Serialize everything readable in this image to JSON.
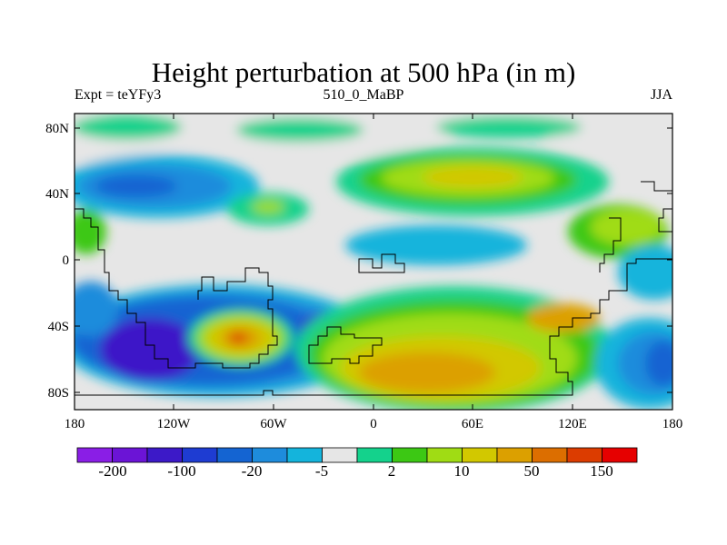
{
  "title": "Height perturbation at 500 hPa (in m)",
  "subtitle_left": "Expt = teYFy3",
  "subtitle_center": "510_0_MaBP",
  "subtitle_right": "JJA",
  "map": {
    "lon_range": [
      -180,
      180
    ],
    "lat_range": [
      -90,
      90
    ],
    "y_ticks": [
      "80N",
      "40N",
      "0",
      "40S",
      "80S"
    ],
    "x_ticks": [
      "180",
      "120W",
      "60W",
      "0",
      "60E",
      "120E",
      "180"
    ]
  },
  "colorbar": {
    "colors": [
      "#8a1ee6",
      "#6b14d6",
      "#3c19c8",
      "#1e3cd2",
      "#1464d2",
      "#1e8cdc",
      "#14b4dc",
      "#e6e6e6",
      "#14d28c",
      "#3cc814",
      "#a0dc14",
      "#d2c800",
      "#dca000",
      "#dc6e00",
      "#dc3c00",
      "#e60000"
    ],
    "labels": [
      "-200",
      "-100",
      "-20",
      "-5",
      "2",
      "10",
      "50",
      "150"
    ]
  }
}
